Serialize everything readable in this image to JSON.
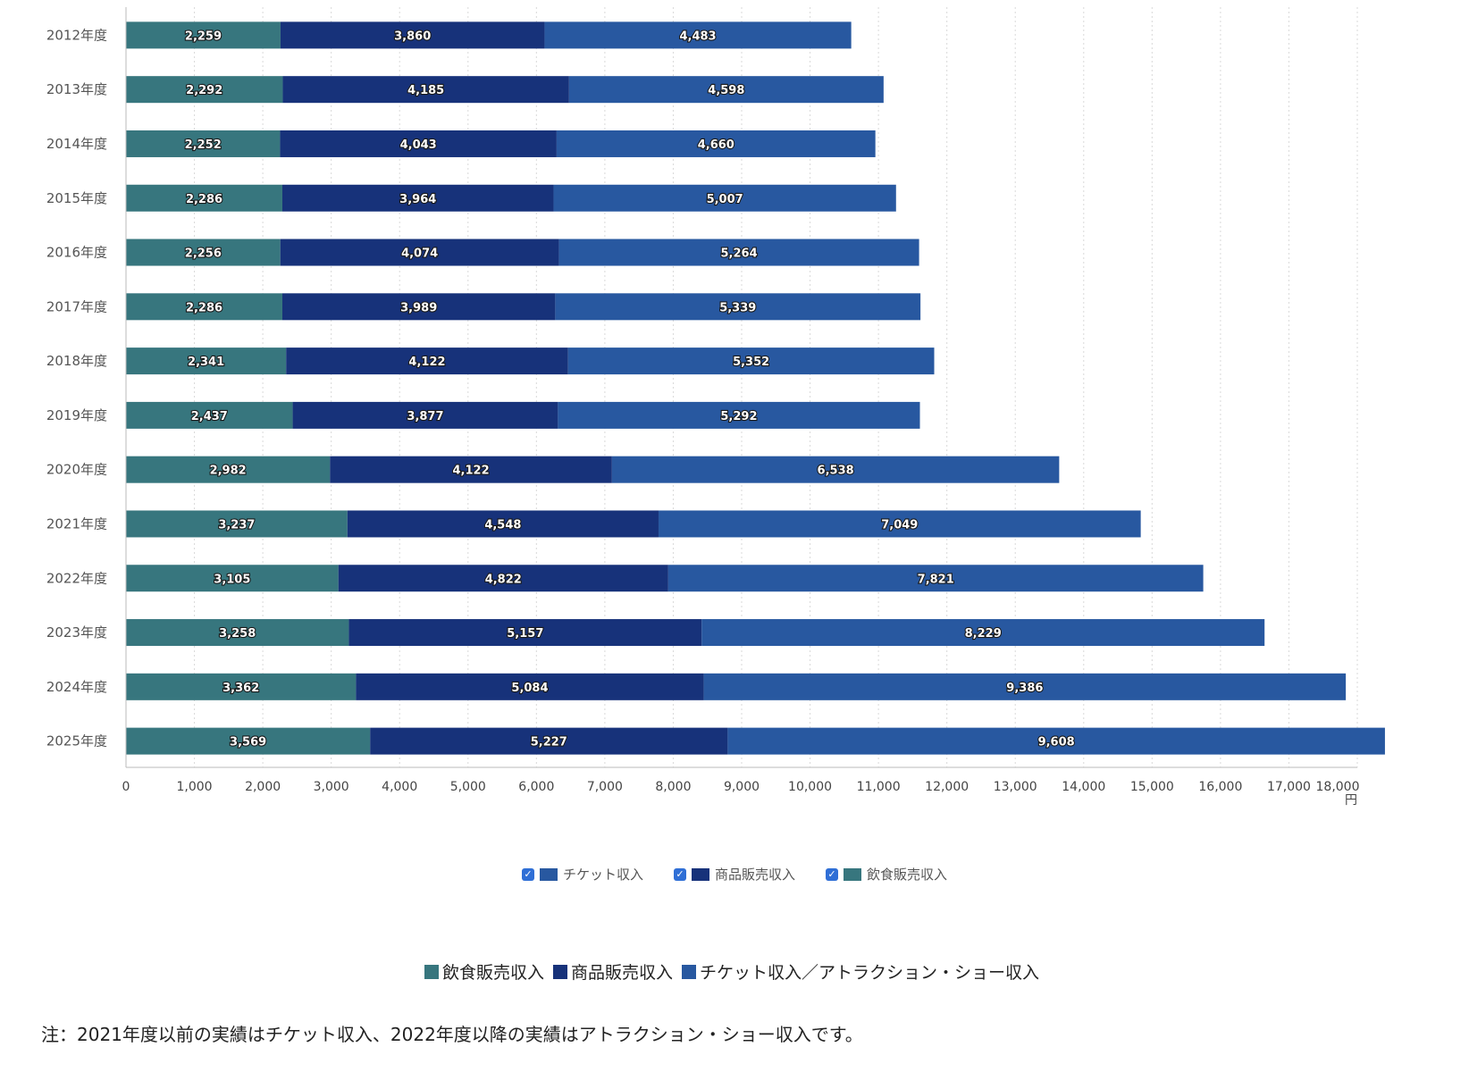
{
  "chart_data": {
    "type": "bar",
    "orientation": "horizontal",
    "stacked": true,
    "categories": [
      "2012年度",
      "2013年度",
      "2014年度",
      "2015年度",
      "2016年度",
      "2017年度",
      "2018年度",
      "2019年度",
      "2020年度",
      "2021年度",
      "2022年度",
      "2023年度",
      "2024年度",
      "2025年度"
    ],
    "series": [
      {
        "name": "飲食販売収入",
        "color": "#37767e",
        "values": [
          2259,
          2292,
          2252,
          2286,
          2256,
          2286,
          2341,
          2437,
          2982,
          3237,
          3105,
          3258,
          3362,
          3569
        ]
      },
      {
        "name": "商品販売収入",
        "color": "#17327a",
        "values": [
          3860,
          4185,
          4043,
          3964,
          4074,
          3989,
          4122,
          3877,
          4122,
          4548,
          4822,
          5157,
          5084,
          5227
        ]
      },
      {
        "name": "チケット収入",
        "color": "#2858a0",
        "values": [
          4483,
          4598,
          4660,
          5007,
          5264,
          5339,
          5352,
          5292,
          6538,
          7049,
          7821,
          8229,
          9386,
          9608
        ]
      }
    ],
    "xlim": [
      0,
      18000
    ],
    "ticks": [
      0,
      1000,
      2000,
      3000,
      4000,
      5000,
      6000,
      7000,
      8000,
      9000,
      10000,
      11000,
      12000,
      13000,
      14000,
      15000,
      16000,
      17000,
      18000
    ],
    "tick_labels": [
      "0",
      "1,000",
      "2,000",
      "3,000",
      "4,000",
      "5,000",
      "6,000",
      "7,000",
      "8,000",
      "9,000",
      "10,000",
      "11,000",
      "12,000",
      "13,000",
      "14,000",
      "15,000",
      "16,000",
      "17,000",
      "18,000"
    ],
    "x_unit": "円",
    "grid": true
  },
  "legend": {
    "items": [
      {
        "label": "チケット収入",
        "color": "#2858a0",
        "checked": true
      },
      {
        "label": "商品販売収入",
        "color": "#17327a",
        "checked": true
      },
      {
        "label": "飲食販売収入",
        "color": "#37767e",
        "checked": true
      }
    ]
  },
  "legend2": {
    "items": [
      {
        "label": "飲食販売収入",
        "color": "#37767e"
      },
      {
        "label": "商品販売収入",
        "color": "#17327a"
      },
      {
        "label": "チケット収入／アトラクション・ショー収入",
        "color": "#2858a0"
      }
    ]
  },
  "note": "注：2021年度以前の実績はチケット収入、2022年度以降の実績はアトラクション・ショー収入です。"
}
